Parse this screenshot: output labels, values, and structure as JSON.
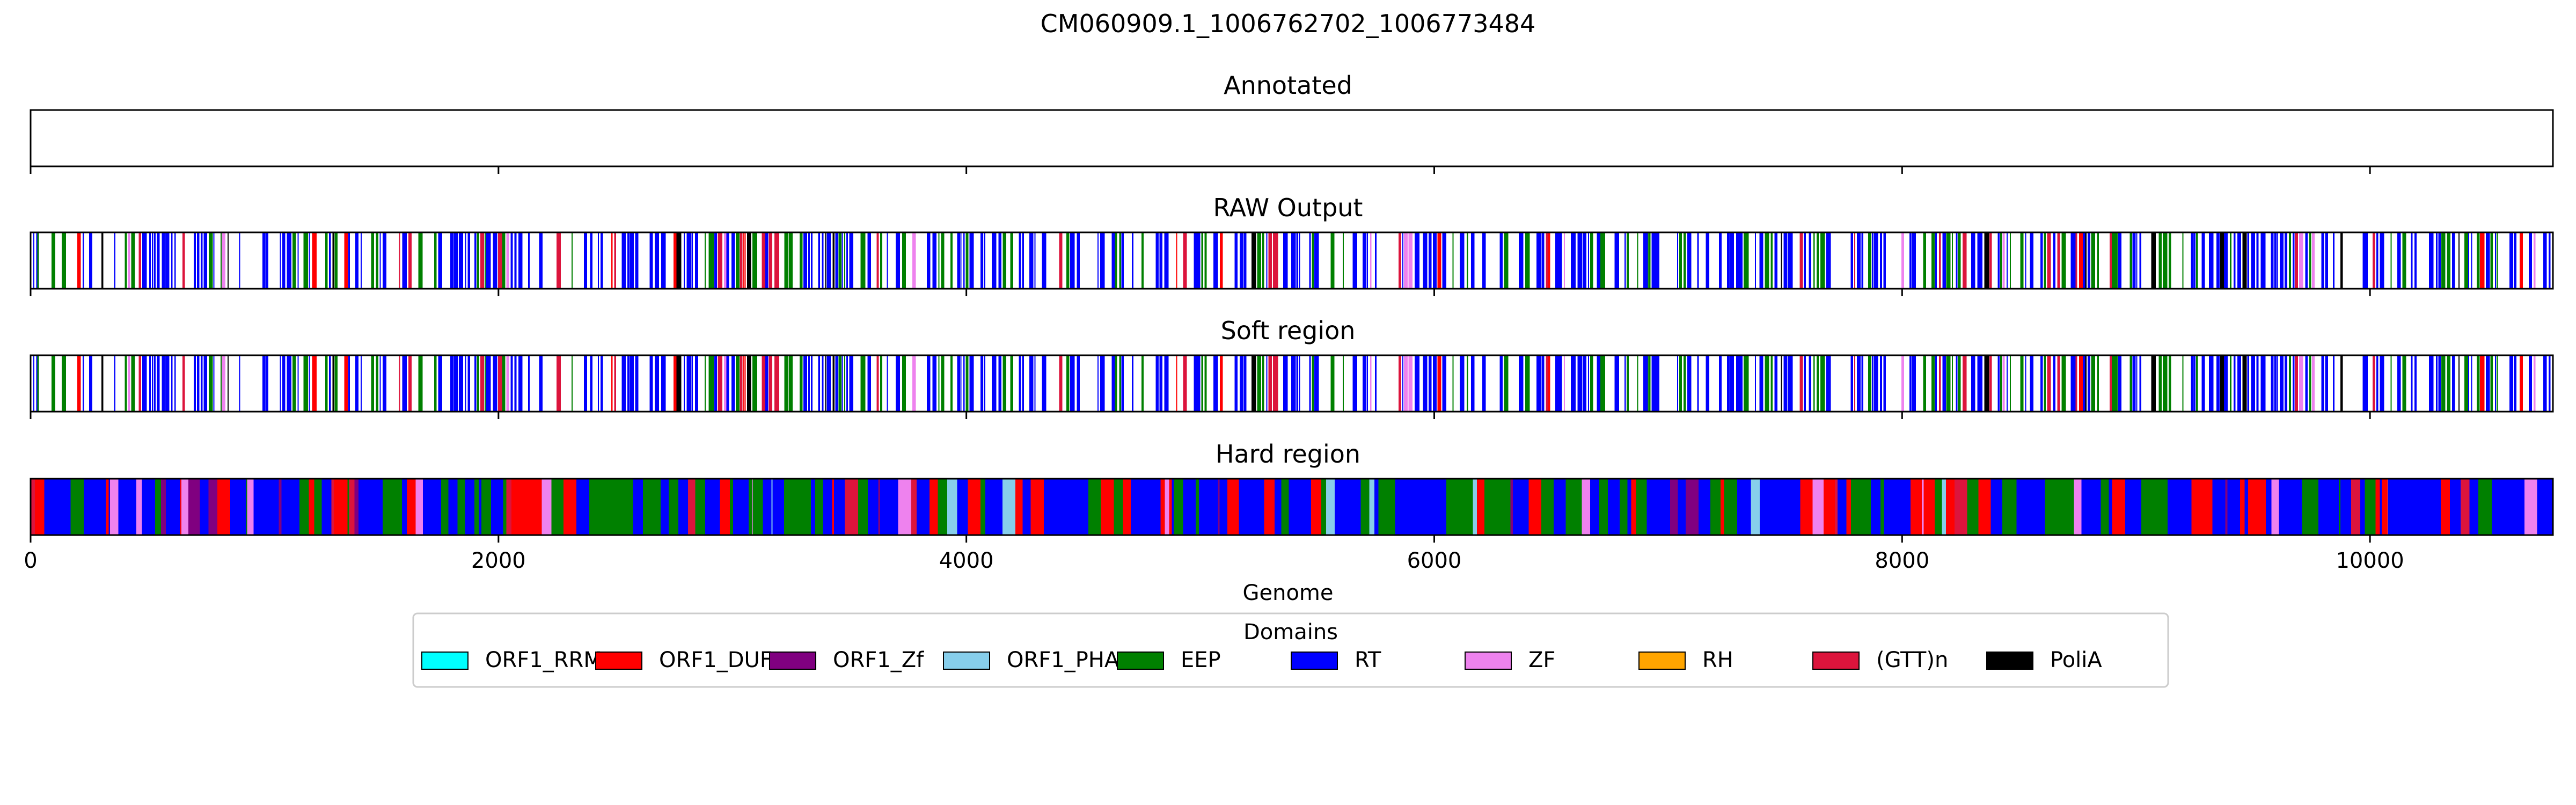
{
  "chart_data": {
    "type": "track",
    "title": "CM060909.1_1006762702_1006773484",
    "xlabel": "Genome",
    "xlim": [
      0,
      10782
    ],
    "xticks": [
      0,
      2000,
      4000,
      6000,
      8000,
      10000
    ],
    "xtick_labels": [
      "0",
      "2000",
      "4000",
      "6000",
      "8000",
      "10000"
    ],
    "tracks": [
      {
        "name": "Annotated",
        "segments": []
      },
      {
        "name": "RAW Output",
        "seed": 11,
        "density": 0.55
      },
      {
        "name": "Soft region",
        "seed": 11,
        "density": 0.55
      },
      {
        "name": "Hard region",
        "seed": 29,
        "density": 1.0
      }
    ],
    "legend": {
      "title": "Domains",
      "placement": "bottom-center",
      "entries": [
        {
          "name": "ORF1_RRM",
          "color": "#00ffff"
        },
        {
          "name": "ORF1_DUF",
          "color": "#ff0000"
        },
        {
          "name": "ORF1_Zf",
          "color": "#800080"
        },
        {
          "name": "ORF1_PHA",
          "color": "#87ceeb"
        },
        {
          "name": "EEP",
          "color": "#008000"
        },
        {
          "name": "RT",
          "color": "#0000ff"
        },
        {
          "name": "ZF",
          "color": "#ee82ee"
        },
        {
          "name": "RH",
          "color": "#ffa500"
        },
        {
          "name": "(GTT)n",
          "color": "#dc143c"
        },
        {
          "name": "PoliA",
          "color": "#000000"
        }
      ]
    }
  }
}
